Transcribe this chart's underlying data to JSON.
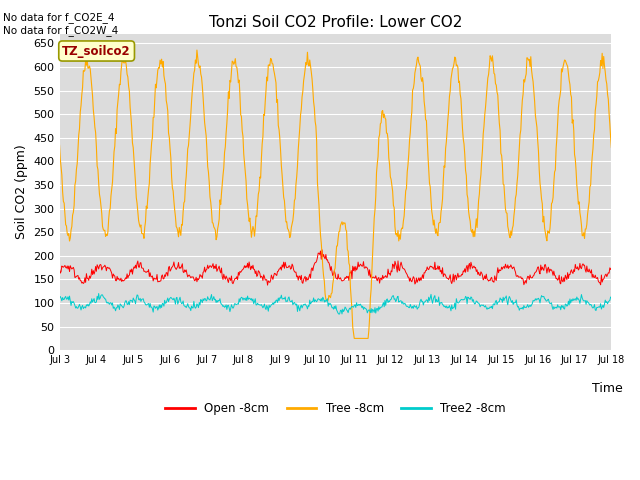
{
  "title": "Tonzi Soil CO2 Profile: Lower CO2",
  "ylabel": "Soil CO2 (ppm)",
  "xlabel": "Time",
  "annotation1": "No data for f_CO2E_4",
  "annotation2": "No data for f_CO2W_4",
  "box_label": "TZ_soilco2",
  "ylim": [
    0,
    670
  ],
  "yticks": [
    0,
    50,
    100,
    150,
    200,
    250,
    300,
    350,
    400,
    450,
    500,
    550,
    600,
    650
  ],
  "xtick_labels": [
    "Jul 3",
    "Jul 4",
    "Jul 5",
    "Jul 6",
    "Jul 7",
    "Jul 8",
    "Jul 9",
    "Jul 10",
    "Jul 11",
    "Jul 12",
    "Jul 13",
    "Jul 14",
    "Jul 15",
    "Jul 16",
    "Jul 17",
    "Jul 18"
  ],
  "legend_labels": [
    "Open -8cm",
    "Tree -8cm",
    "Tree2 -8cm"
  ],
  "line_colors": [
    "#ff0000",
    "#ffaa00",
    "#00cccc"
  ],
  "bg_color": "#dcdcdc",
  "fig_color": "#ffffff",
  "grid_color": "#ffffff",
  "n_days": 15,
  "pts_per_day": 48
}
